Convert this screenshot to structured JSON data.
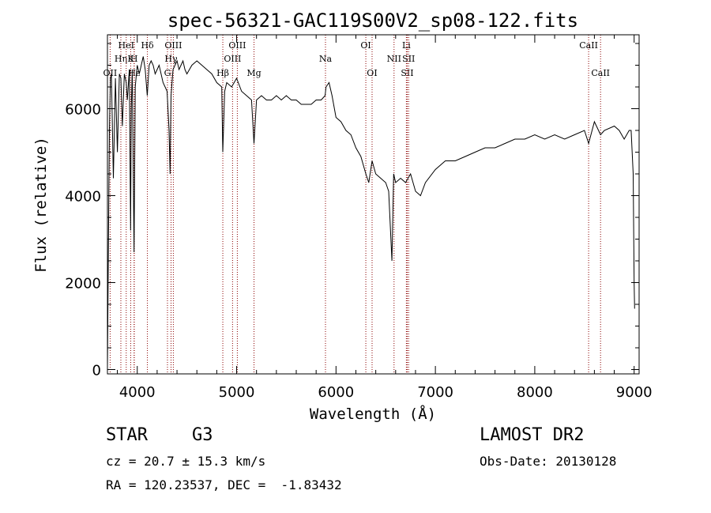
{
  "chart_data": {
    "type": "line",
    "title": "spec-56321-GAC119S00V2_sp08-122.fits",
    "xlabel": "Wavelength (Å)",
    "ylabel": "Flux (relative)",
    "xlim": [
      3700,
      9050
    ],
    "ylim": [
      -100,
      7700
    ],
    "xticks": [
      4000,
      5000,
      6000,
      7000,
      8000,
      9000
    ],
    "yticks": [
      0,
      2000,
      4000,
      6000
    ],
    "grid": false,
    "line_color": "#000000",
    "marker_color": "#8b0000",
    "spectrum": {
      "x": [
        3700,
        3710,
        3720,
        3730,
        3740,
        3760,
        3780,
        3800,
        3820,
        3835,
        3850,
        3870,
        3889,
        3900,
        3920,
        3933,
        3940,
        3950,
        3968,
        3980,
        4000,
        4020,
        4040,
        4060,
        4080,
        4101,
        4120,
        4140,
        4160,
        4180,
        4200,
        4220,
        4240,
        4260,
        4280,
        4300,
        4320,
        4330,
        4340,
        4360,
        4380,
        4400,
        4420,
        4440,
        4460,
        4480,
        4500,
        4550,
        4600,
        4650,
        4700,
        4750,
        4800,
        4850,
        4861,
        4880,
        4900,
        4950,
        5000,
        5050,
        5100,
        5150,
        5175,
        5200,
        5250,
        5300,
        5350,
        5400,
        5450,
        5500,
        5550,
        5600,
        5650,
        5700,
        5750,
        5800,
        5850,
        5890,
        5900,
        5930,
        5960,
        6000,
        6050,
        6100,
        6150,
        6200,
        6250,
        6300,
        6330,
        6363,
        6400,
        6450,
        6500,
        6530,
        6563,
        6580,
        6600,
        6650,
        6700,
        6750,
        6800,
        6850,
        6900,
        7000,
        7100,
        7200,
        7300,
        7400,
        7500,
        7600,
        7700,
        7800,
        7900,
        8000,
        8100,
        8200,
        8300,
        8400,
        8500,
        8542,
        8600,
        8662,
        8700,
        8800,
        8850,
        8900,
        8950,
        8970,
        8990,
        9000,
        9005
      ],
      "y": [
        50,
        3000,
        5500,
        6700,
        6800,
        4400,
        6700,
        5000,
        6800,
        6700,
        5600,
        6800,
        6600,
        6200,
        6900,
        3200,
        6000,
        6900,
        2700,
        6500,
        7000,
        6800,
        7000,
        7200,
        6900,
        6300,
        7000,
        7100,
        7000,
        6800,
        6900,
        7000,
        6800,
        6600,
        6500,
        6400,
        5500,
        4500,
        6300,
        6900,
        7000,
        7100,
        6900,
        7000,
        7100,
        6900,
        6800,
        7000,
        7100,
        7000,
        6900,
        6800,
        6600,
        6500,
        5000,
        6400,
        6600,
        6500,
        6700,
        6400,
        6300,
        6200,
        5200,
        6200,
        6300,
        6200,
        6200,
        6300,
        6200,
        6300,
        6200,
        6200,
        6100,
        6100,
        6100,
        6200,
        6200,
        6300,
        6500,
        6600,
        6300,
        5800,
        5700,
        5500,
        5400,
        5100,
        4900,
        4500,
        4300,
        4800,
        4500,
        4400,
        4300,
        4100,
        2500,
        4500,
        4300,
        4400,
        4300,
        4500,
        4100,
        4000,
        4300,
        4600,
        4800,
        4800,
        4900,
        5000,
        5100,
        5100,
        5200,
        5300,
        5300,
        5400,
        5300,
        5400,
        5300,
        5400,
        5500,
        5200,
        5700,
        5400,
        5500,
        5600,
        5500,
        5300,
        5500,
        5500,
        4500,
        2000,
        1400
      ]
    },
    "line_markers": [
      {
        "label": "OII",
        "x": 3727,
        "row": 3
      },
      {
        "label": "Hη",
        "x": 3835,
        "row": 2
      },
      {
        "label": "HeI",
        "x": 3889,
        "row": 1
      },
      {
        "label": "Hε",
        "x": 3970,
        "row": 3
      },
      {
        "label": "K",
        "x": 3934,
        "row": 2
      },
      {
        "label": "H",
        "x": 3968,
        "row": 2
      },
      {
        "label": "Hδ",
        "x": 4102,
        "row": 1
      },
      {
        "label": "G",
        "x": 4304,
        "row": 3
      },
      {
        "label": "Hγ",
        "x": 4340,
        "row": 2
      },
      {
        "label": "OIII",
        "x": 4363,
        "row": 1
      },
      {
        "label": "Hβ",
        "x": 4861,
        "row": 3
      },
      {
        "label": "OIII",
        "x": 4959,
        "row": 2
      },
      {
        "label": "OIII",
        "x": 5007,
        "row": 1
      },
      {
        "label": "Mg",
        "x": 5175,
        "row": 3
      },
      {
        "label": "Na",
        "x": 5894,
        "row": 2
      },
      {
        "label": "OI",
        "x": 6300,
        "row": 1
      },
      {
        "label": "OI",
        "x": 6363,
        "row": 3
      },
      {
        "label": "NII",
        "x": 6584,
        "row": 2
      },
      {
        "label": "Li",
        "x": 6708,
        "row": 1
      },
      {
        "label": "SII",
        "x": 6717,
        "row": 3
      },
      {
        "label": "SII",
        "x": 6731,
        "row": 2
      },
      {
        "label": "CaII",
        "x": 8542,
        "row": 1
      },
      {
        "label": "CaII",
        "x": 8662,
        "row": 3
      }
    ]
  },
  "info": {
    "class_label": "STAR",
    "subclass": "G3",
    "survey": "LAMOST DR2",
    "redshift_line": "cz = 20.7 ± 15.3 km/s",
    "obs_date": "Obs-Date: 20130128",
    "coords": "RA = 120.23537, DEC =  -1.83432"
  }
}
